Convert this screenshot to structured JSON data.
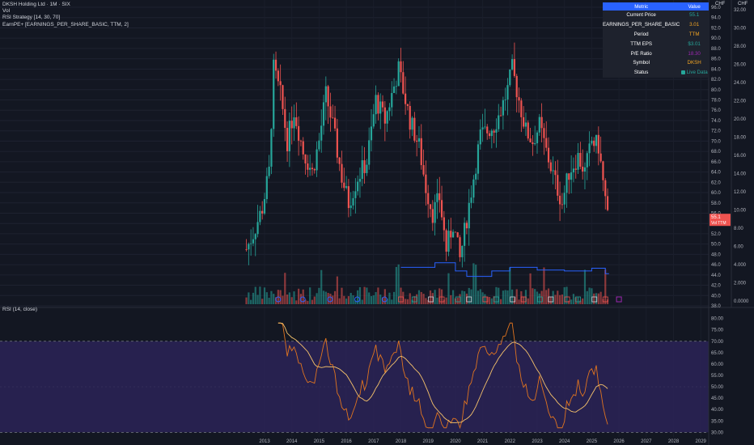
{
  "legend": {
    "symbol_line": "DKSH Holding Ltd · 1M · SIX",
    "vol_label": "Vol",
    "strategy_label": "RSI Strategy [14, 30, 70]",
    "earnpe_label": "EarnPE+ [EARNINGS_PER_SHARE_BASIC, TTM, 2]"
  },
  "rsi_pane": {
    "label": "RSI (14, close)"
  },
  "price_axis": {
    "currency_left": "CHF",
    "currency_right": "CHF",
    "left_ticks": [
      "96.0",
      "94.0",
      "92.0",
      "90.0",
      "88.0",
      "86.0",
      "84.0",
      "82.0",
      "80.0",
      "78.0",
      "76.0",
      "74.0",
      "72.0",
      "70.0",
      "68.0",
      "66.0",
      "64.0",
      "62.0",
      "60.0",
      "58.0",
      "56.0",
      "54.0",
      "52.0",
      "50.0",
      "48.0",
      "46.0",
      "44.0",
      "42.0",
      "40.0",
      "38.0"
    ],
    "right_ticks": [
      "32.00",
      "30.00",
      "28.00",
      "26.00",
      "24.00",
      "22.00",
      "20.00",
      "18.00",
      "16.00",
      "14.00",
      "12.00",
      "10.00",
      "8.00",
      "6.00",
      "4.000",
      "2.000",
      "0.0000"
    ],
    "last_price_label": "55.1",
    "last_price_sub": "Vol TTM",
    "rsi_ticks": [
      "80.00",
      "75.00",
      "70.00",
      "65.00",
      "60.00",
      "55.00",
      "50.00",
      "45.00",
      "40.00",
      "35.00",
      "30.00"
    ]
  },
  "time_axis": {
    "labels": [
      "2013",
      "2014",
      "2015",
      "2016",
      "2017",
      "2018",
      "2019",
      "2020",
      "2021",
      "2022",
      "2023",
      "2024",
      "2025",
      "2026",
      "2027",
      "2028",
      "2029"
    ]
  },
  "metrics_table": {
    "header_metric": "Metric",
    "header_value": "Value",
    "rows": [
      {
        "metric": "Current Price",
        "value": "55.1"
      },
      {
        "metric": "EARNINGS_PER_SHARE_BASIC",
        "value": "3.01"
      },
      {
        "metric": "Period",
        "value": "TTM"
      },
      {
        "metric": "TTM EPS",
        "value": "$3.01"
      },
      {
        "metric": "P/E Ratio",
        "value": "18.30"
      },
      {
        "metric": "Symbol",
        "value": "DKSH"
      },
      {
        "metric": "Status",
        "value": "Live Data"
      }
    ]
  },
  "colors": {
    "background": "#131722",
    "up": "#26a69a",
    "down": "#ef5350",
    "eps_line": "#2962ff",
    "rsi_line": "#e0741f",
    "rsi_ma": "#f5c26b",
    "rsi_band": "#2b2357",
    "table_header": "#2962ff",
    "value_current_price": "#26a69a",
    "value_eps": "#f5a623",
    "value_period": "#f5a623",
    "value_ttm_eps": "#26a69a",
    "value_pe": "#9c27b0",
    "value_symbol": "#f5a623",
    "value_status": "#26a69a"
  },
  "chart_data": {
    "type": "candlestick",
    "interval": "1M",
    "price_ylim": [
      38,
      96
    ],
    "eps_ylim": [
      0,
      32
    ],
    "x_range": [
      "2012-01",
      "2029-06"
    ],
    "price_anchors": [
      [
        "2012-05",
        49
      ],
      [
        "2012-08",
        52
      ],
      [
        "2012-12",
        57
      ],
      [
        "2013-03",
        64
      ],
      [
        "2013-05",
        84
      ],
      [
        "2013-08",
        79
      ],
      [
        "2013-11",
        70
      ],
      [
        "2014-02",
        76
      ],
      [
        "2014-06",
        68
      ],
      [
        "2014-10",
        64
      ],
      [
        "2015-01",
        70
      ],
      [
        "2015-04",
        79
      ],
      [
        "2015-07",
        73
      ],
      [
        "2015-11",
        63
      ],
      [
        "2016-02",
        58
      ],
      [
        "2016-06",
        63
      ],
      [
        "2016-10",
        66
      ],
      [
        "2017-02",
        78
      ],
      [
        "2017-06",
        74
      ],
      [
        "2017-09",
        79
      ],
      [
        "2017-12",
        84
      ],
      [
        "2018-02",
        80
      ],
      [
        "2018-05",
        74
      ],
      [
        "2018-09",
        69
      ],
      [
        "2018-12",
        61
      ],
      [
        "2019-03",
        56
      ],
      [
        "2019-06",
        59
      ],
      [
        "2019-09",
        49
      ],
      [
        "2019-12",
        54
      ],
      [
        "2020-03",
        47
      ],
      [
        "2020-06",
        55
      ],
      [
        "2020-09",
        63
      ],
      [
        "2020-12",
        71
      ],
      [
        "2021-03",
        72
      ],
      [
        "2021-06",
        73
      ],
      [
        "2021-09",
        76
      ],
      [
        "2021-12",
        80
      ],
      [
        "2022-02",
        84
      ],
      [
        "2022-05",
        78
      ],
      [
        "2022-08",
        72
      ],
      [
        "2022-11",
        70
      ],
      [
        "2023-02",
        73
      ],
      [
        "2023-05",
        68
      ],
      [
        "2023-09",
        62
      ],
      [
        "2023-12",
        58
      ],
      [
        "2024-03",
        64
      ],
      [
        "2024-07",
        67
      ],
      [
        "2024-10",
        64
      ],
      [
        "2025-01",
        70
      ],
      [
        "2025-04",
        69
      ],
      [
        "2025-06",
        62
      ],
      [
        "2025-08",
        55.1
      ]
    ],
    "eps_steps": [
      [
        "2018-01",
        3.7
      ],
      [
        "2019-04",
        4.2
      ],
      [
        "2020-01",
        3.3
      ],
      [
        "2020-06",
        2.7
      ],
      [
        "2021-05",
        3.3
      ],
      [
        "2022-01",
        3.7
      ],
      [
        "2023-01",
        3.4
      ],
      [
        "2024-01",
        3.3
      ],
      [
        "2024-10",
        3.3
      ],
      [
        "2025-01",
        3.6
      ],
      [
        "2025-07",
        3.0
      ]
    ],
    "rsi_ylim": [
      28,
      82
    ],
    "rsi_overbought": 70,
    "rsi_oversold": 30
  }
}
